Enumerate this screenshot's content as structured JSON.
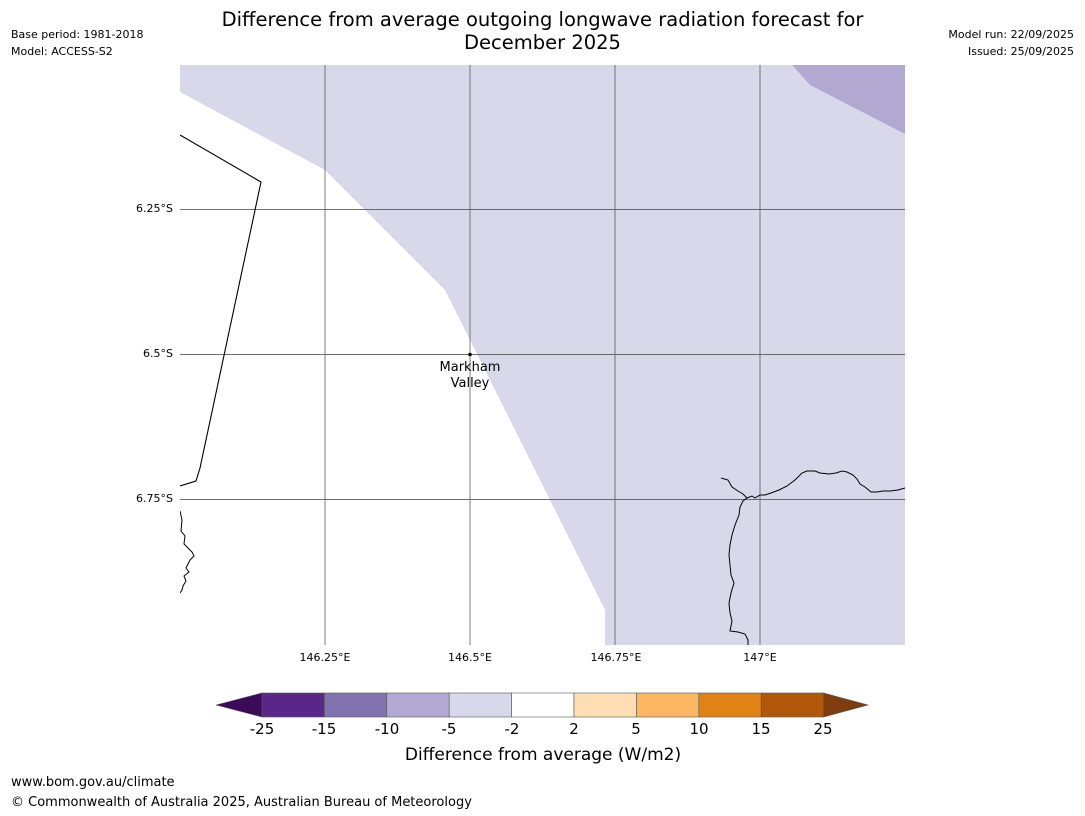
{
  "header": {
    "title_line1": "Difference from average outgoing longwave radiation forecast for",
    "title_line2": "December 2025",
    "base_period": "Base period: 1981-2018",
    "model": "Model: ACCESS-S2",
    "model_run": "Model run: 22/09/2025",
    "issued": "Issued: 25/09/2025"
  },
  "map": {
    "lat_labels": [
      "6.25°S",
      "6.5°S",
      "6.75°S"
    ],
    "lon_labels": [
      "146.25°E",
      "146.5°E",
      "146.75°E",
      "147°E"
    ],
    "place_line1": "Markham",
    "place_line2": "Valley",
    "colors": {
      "light_lavender": "#d8d8ea",
      "lavender": "#b1a9d2",
      "gridline": "#555555",
      "coastline": "#000000"
    }
  },
  "colorbar": {
    "title": "Difference from average (W/m2)",
    "labels": [
      "-25",
      "-15",
      "-10",
      "-5",
      "-2",
      "2",
      "5",
      "10",
      "15",
      "25"
    ],
    "colors": [
      "#3b0a5a",
      "#5a2689",
      "#8173af",
      "#b1a9d2",
      "#d8d8ea",
      "#ffffff",
      "#fedfb3",
      "#fbb761",
      "#e08314",
      "#b2580a",
      "#7f3c0f"
    ]
  },
  "footer": {
    "url": "www.bom.gov.au/climate",
    "copyright": "© Commonwealth of Australia 2025, Australian Bureau of Meteorology"
  }
}
